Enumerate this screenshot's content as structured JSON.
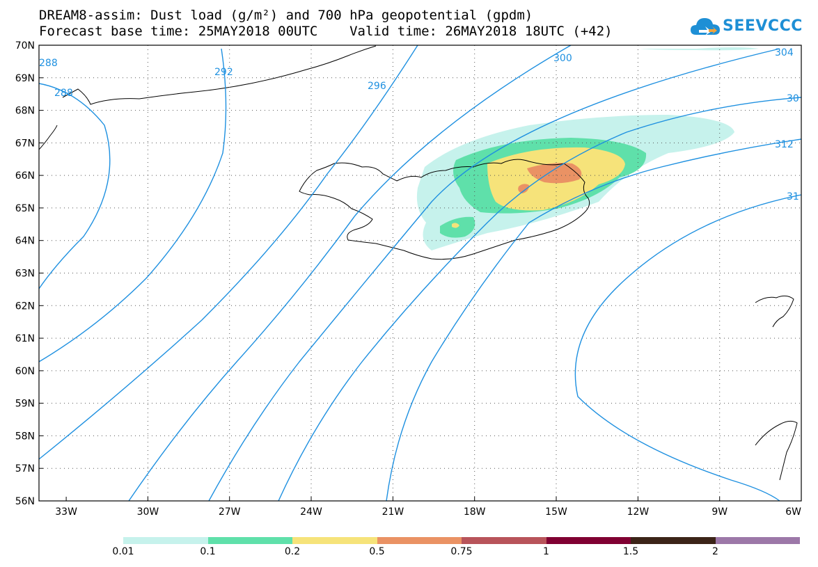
{
  "header": {
    "line1": "DREAM8-assim: Dust load (g/m²) and 700 hPa geopotential (gpdm)",
    "line2": "Forecast base time: 25MAY2018 00UTC    Valid time: 26MAY2018 18UTC (+42)"
  },
  "logo": {
    "text": "SEEVCCC",
    "icon": "cloud-logo-icon"
  },
  "map": {
    "lat_labels": [
      "70N",
      "69N",
      "68N",
      "67N",
      "66N",
      "65N",
      "64N",
      "63N",
      "62N",
      "61N",
      "60N",
      "59N",
      "58N",
      "57N",
      "56N"
    ],
    "lon_labels": [
      "33W",
      "30W",
      "27W",
      "24W",
      "21W",
      "18W",
      "15W",
      "12W",
      "9W",
      "6W"
    ],
    "contour_labels": [
      "288",
      "288",
      "292",
      "296",
      "300",
      "304",
      "30",
      "312",
      "31"
    ],
    "contour_color": "#1e90e0"
  },
  "colorbar": {
    "labels": [
      "0.01",
      "0.1",
      "0.2",
      "0.5",
      "0.75",
      "1",
      "1.5",
      "2"
    ],
    "colors": [
      "#c6f2ec",
      "#5fe0aa",
      "#f6e37a",
      "#ea9264",
      "#b8545a",
      "#800032",
      "#3c2418",
      "#9c78a8"
    ]
  }
}
